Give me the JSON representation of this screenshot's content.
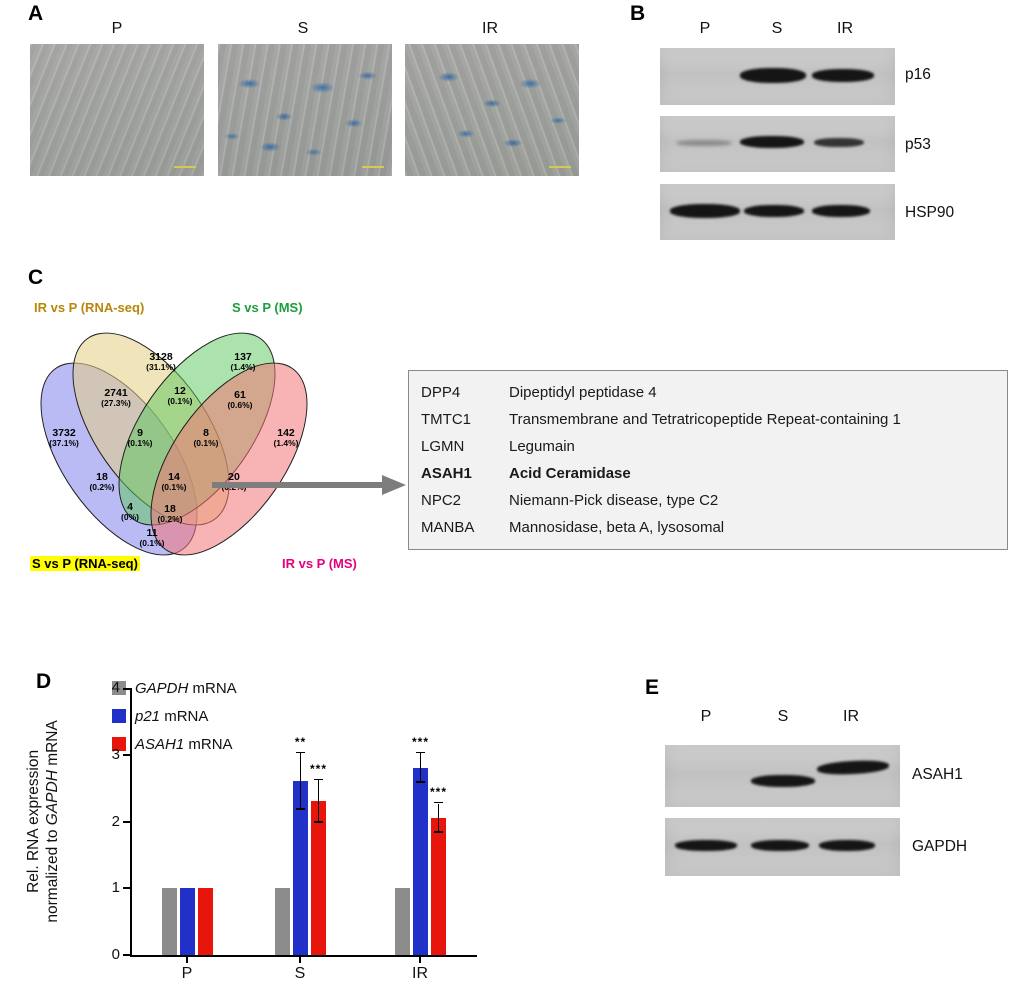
{
  "figure": {
    "panel_a": {
      "label": "A",
      "conditions": [
        "P",
        "S",
        "IR"
      ]
    },
    "panel_b": {
      "label": "B",
      "lanes": [
        "P",
        "S",
        "IR"
      ],
      "proteins": [
        "p16",
        "p53",
        "HSP90"
      ]
    },
    "panel_c": {
      "label": "C",
      "sets": [
        {
          "name": "IR vs P (RNA-seq)",
          "color": "#b8860b"
        },
        {
          "name": "S vs P (MS)",
          "color": "#1e9e3e"
        },
        {
          "name": "S vs P (RNA-seq)",
          "color": "#000000",
          "highlight": "#ffff00"
        },
        {
          "name": "IR vs P (MS)",
          "color": "#e6007e"
        }
      ],
      "regions": [
        {
          "count": "3128",
          "pct": "(31.1%)"
        },
        {
          "count": "137",
          "pct": "(1.4%)"
        },
        {
          "count": "2741",
          "pct": "(27.3%)"
        },
        {
          "count": "12",
          "pct": "(0.1%)"
        },
        {
          "count": "61",
          "pct": "(0.6%)"
        },
        {
          "count": "3732",
          "pct": "(37.1%)"
        },
        {
          "count": "9",
          "pct": "(0.1%)"
        },
        {
          "count": "8",
          "pct": "(0.1%)"
        },
        {
          "count": "142",
          "pct": "(1.4%)"
        },
        {
          "count": "18",
          "pct": "(0.2%)"
        },
        {
          "count": "14",
          "pct": "(0.1%)"
        },
        {
          "count": "20",
          "pct": "(0.2%)"
        },
        {
          "count": "4",
          "pct": "(0%)"
        },
        {
          "count": "18",
          "pct": "(0.2%)"
        },
        {
          "count": "11",
          "pct": "(0.1%)"
        }
      ],
      "genes": [
        {
          "symbol": "DPP4",
          "desc": "Dipeptidyl peptidase 4"
        },
        {
          "symbol": "TMTC1",
          "desc": "Transmembrane and Tetratricopeptide Repeat-containing 1"
        },
        {
          "symbol": "LGMN",
          "desc": "Legumain"
        },
        {
          "symbol": "ASAH1",
          "desc": "Acid Ceramidase"
        },
        {
          "symbol": "NPC2",
          "desc": "Niemann-Pick disease, type C2"
        },
        {
          "symbol": "MANBA",
          "desc": "Mannosidase, beta A, lysosomal"
        }
      ]
    },
    "panel_d": {
      "label": "D"
    },
    "panel_e": {
      "label": "E",
      "lanes": [
        "P",
        "S",
        "IR"
      ],
      "proteins": [
        "ASAH1",
        "GAPDH"
      ]
    }
  },
  "chart_data": {
    "type": "bar",
    "categories": [
      "P",
      "S",
      "IR"
    ],
    "series": [
      {
        "name": "GAPDH mRNA",
        "gene": "GAPDH",
        "suffix": " mRNA",
        "color": "#8c8c8c",
        "values": [
          1.0,
          1.0,
          1.0
        ],
        "errors": [
          0,
          0,
          0
        ],
        "sig": [
          "",
          "",
          ""
        ]
      },
      {
        "name": "p21 mRNA",
        "gene": "p21",
        "suffix": " mRNA",
        "color": "#2030c8",
        "values": [
          1.0,
          2.6,
          2.8
        ],
        "errors": [
          0,
          0.42,
          0.22
        ],
        "sig": [
          "",
          "**",
          "***"
        ]
      },
      {
        "name": "ASAH1 mRNA",
        "gene": "ASAH1",
        "suffix": " mRNA",
        "color": "#e8150d",
        "values": [
          1.0,
          2.3,
          2.05
        ],
        "errors": [
          0,
          0.32,
          0.22
        ],
        "sig": [
          "",
          "***",
          "***"
        ]
      }
    ],
    "ylabel_line1": "Rel. RNA expression",
    "ylabel_line2_pre": "normalized to ",
    "ylabel_line2_gene": "GAPDH",
    "ylabel_line2_post": " mRNA",
    "ylim": [
      0,
      4
    ],
    "yticks": [
      0,
      1,
      2,
      3,
      4
    ],
    "legend_position": "top-left",
    "grid": false
  }
}
